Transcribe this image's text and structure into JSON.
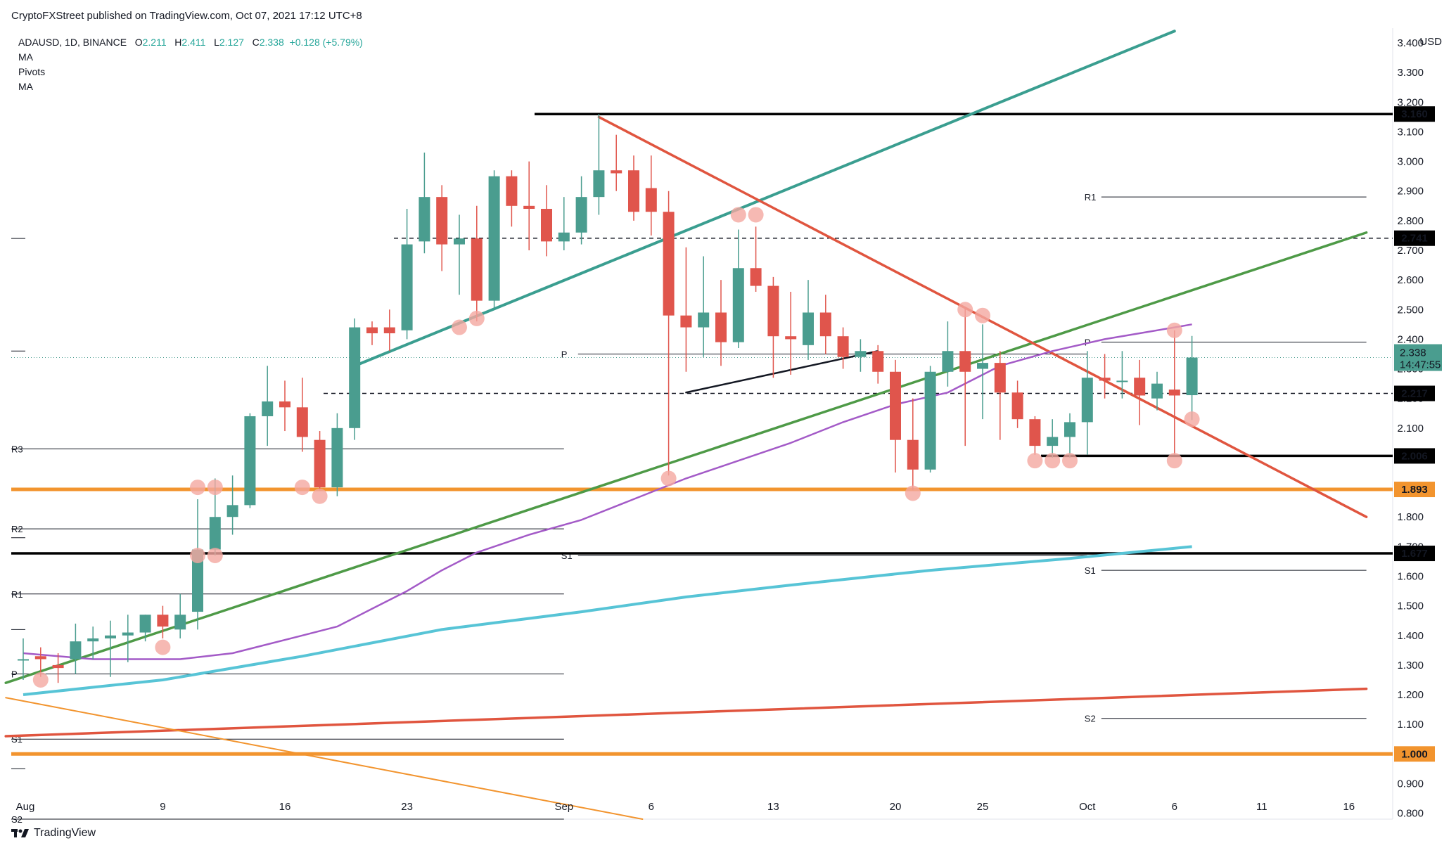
{
  "header": {
    "publisher_line": "CryptoFXStreet published on TradingView.com, Oct 07, 2021 17:12 UTC+8"
  },
  "legend": {
    "symbol": "ADAUSD, 1D, BINANCE",
    "o_label": "O",
    "o_value": "2.211",
    "h_label": "H",
    "h_value": "2.411",
    "l_label": "L",
    "l_value": "2.127",
    "c_label": "C",
    "c_value": "2.338",
    "change": "+0.128 (+5.79%)",
    "indicators": [
      "MA",
      "Pivots",
      "MA"
    ]
  },
  "footer": {
    "brand": "TradingView"
  },
  "colors": {
    "up": "#4a9d8f",
    "down": "#e0554c",
    "ma_purple": "#a35ac7",
    "ma_cyan": "#57c4d6",
    "teal_line": "#3a9e90",
    "green_line": "#4e9a47",
    "red_line": "#e0553f",
    "orange": "#f2942e",
    "highlight": "#f4a8a0"
  },
  "chart_data": {
    "type": "candlestick",
    "symbol": "ADAUSD",
    "currency": "USD",
    "ylim": [
      0.78,
      3.45
    ],
    "y_ticks": [
      "0.800",
      "0.900",
      "1.000",
      "1.100",
      "1.200",
      "1.300",
      "1.400",
      "1.500",
      "1.600",
      "1.700",
      "1.800",
      "1.900",
      "2.000",
      "2.100",
      "2.200",
      "2.300",
      "2.400",
      "2.500",
      "2.600",
      "2.700",
      "2.800",
      "2.900",
      "3.000",
      "3.100",
      "3.200",
      "3.300",
      "3.400"
    ],
    "x_ticks": [
      {
        "label": "Aug",
        "day": 0
      },
      {
        "label": "9",
        "day": 8
      },
      {
        "label": "16",
        "day": 15
      },
      {
        "label": "23",
        "day": 22
      },
      {
        "label": "Sep",
        "day": 31
      },
      {
        "label": "6",
        "day": 36
      },
      {
        "label": "13",
        "day": 43
      },
      {
        "label": "20",
        "day": 50
      },
      {
        "label": "25",
        "day": 55
      },
      {
        "label": "Oct",
        "day": 61
      },
      {
        "label": "6",
        "day": 66
      },
      {
        "label": "11",
        "day": 71
      },
      {
        "label": "16",
        "day": 76
      }
    ],
    "candles": [
      {
        "d": 0,
        "o": 1.32,
        "h": 1.39,
        "l": 1.25,
        "c": 1.32
      },
      {
        "d": 1,
        "o": 1.33,
        "h": 1.36,
        "l": 1.26,
        "c": 1.32
      },
      {
        "d": 2,
        "o": 1.3,
        "h": 1.34,
        "l": 1.24,
        "c": 1.29
      },
      {
        "d": 3,
        "o": 1.32,
        "h": 1.44,
        "l": 1.27,
        "c": 1.38
      },
      {
        "d": 4,
        "o": 1.38,
        "h": 1.43,
        "l": 1.32,
        "c": 1.39
      },
      {
        "d": 5,
        "o": 1.39,
        "h": 1.45,
        "l": 1.26,
        "c": 1.4
      },
      {
        "d": 6,
        "o": 1.4,
        "h": 1.47,
        "l": 1.31,
        "c": 1.41
      },
      {
        "d": 7,
        "o": 1.41,
        "h": 1.47,
        "l": 1.38,
        "c": 1.47
      },
      {
        "d": 8,
        "o": 1.47,
        "h": 1.5,
        "l": 1.39,
        "c": 1.43
      },
      {
        "d": 9,
        "o": 1.42,
        "h": 1.54,
        "l": 1.39,
        "c": 1.47
      },
      {
        "d": 10,
        "o": 1.48,
        "h": 1.86,
        "l": 1.42,
        "c": 1.69
      },
      {
        "d": 11,
        "o": 1.69,
        "h": 1.93,
        "l": 1.67,
        "c": 1.8
      },
      {
        "d": 12,
        "o": 1.8,
        "h": 1.94,
        "l": 1.74,
        "c": 1.84
      },
      {
        "d": 13,
        "o": 1.84,
        "h": 2.15,
        "l": 1.83,
        "c": 2.14
      },
      {
        "d": 14,
        "o": 2.14,
        "h": 2.31,
        "l": 2.04,
        "c": 2.19
      },
      {
        "d": 15,
        "o": 2.19,
        "h": 2.26,
        "l": 2.09,
        "c": 2.17
      },
      {
        "d": 16,
        "o": 2.17,
        "h": 2.27,
        "l": 2.02,
        "c": 2.07
      },
      {
        "d": 17,
        "o": 2.06,
        "h": 2.09,
        "l": 1.89,
        "c": 1.9
      },
      {
        "d": 18,
        "o": 1.9,
        "h": 2.15,
        "l": 1.87,
        "c": 2.1
      },
      {
        "d": 19,
        "o": 2.1,
        "h": 2.47,
        "l": 2.06,
        "c": 2.44
      },
      {
        "d": 20,
        "o": 2.44,
        "h": 2.46,
        "l": 2.38,
        "c": 2.42
      },
      {
        "d": 21,
        "o": 2.44,
        "h": 2.5,
        "l": 2.36,
        "c": 2.42
      },
      {
        "d": 22,
        "o": 2.43,
        "h": 2.84,
        "l": 2.4,
        "c": 2.72
      },
      {
        "d": 23,
        "o": 2.73,
        "h": 3.03,
        "l": 2.69,
        "c": 2.88
      },
      {
        "d": 24,
        "o": 2.88,
        "h": 2.92,
        "l": 2.63,
        "c": 2.72
      },
      {
        "d": 25,
        "o": 2.72,
        "h": 2.82,
        "l": 2.55,
        "c": 2.74
      },
      {
        "d": 26,
        "o": 2.74,
        "h": 2.85,
        "l": 2.46,
        "c": 2.53
      },
      {
        "d": 27,
        "o": 2.53,
        "h": 2.97,
        "l": 2.5,
        "c": 2.95
      },
      {
        "d": 28,
        "o": 2.95,
        "h": 2.97,
        "l": 2.78,
        "c": 2.85
      },
      {
        "d": 29,
        "o": 2.85,
        "h": 3.0,
        "l": 2.7,
        "c": 2.84
      },
      {
        "d": 30,
        "o": 2.84,
        "h": 2.92,
        "l": 2.68,
        "c": 2.73
      },
      {
        "d": 31,
        "o": 2.73,
        "h": 2.88,
        "l": 2.7,
        "c": 2.76
      },
      {
        "d": 32,
        "o": 2.76,
        "h": 2.95,
        "l": 2.72,
        "c": 2.88
      },
      {
        "d": 33,
        "o": 2.88,
        "h": 3.16,
        "l": 2.82,
        "c": 2.97
      },
      {
        "d": 34,
        "o": 2.97,
        "h": 3.09,
        "l": 2.9,
        "c": 2.96
      },
      {
        "d": 35,
        "o": 2.97,
        "h": 3.02,
        "l": 2.8,
        "c": 2.83
      },
      {
        "d": 36,
        "o": 2.91,
        "h": 3.02,
        "l": 2.75,
        "c": 2.83
      },
      {
        "d": 37,
        "o": 2.83,
        "h": 2.9,
        "l": 1.94,
        "c": 2.48
      },
      {
        "d": 38,
        "o": 2.48,
        "h": 2.71,
        "l": 2.29,
        "c": 2.44
      },
      {
        "d": 39,
        "o": 2.44,
        "h": 2.68,
        "l": 2.34,
        "c": 2.49
      },
      {
        "d": 40,
        "o": 2.49,
        "h": 2.6,
        "l": 2.31,
        "c": 2.39
      },
      {
        "d": 41,
        "o": 2.39,
        "h": 2.77,
        "l": 2.37,
        "c": 2.64
      },
      {
        "d": 42,
        "o": 2.64,
        "h": 2.78,
        "l": 2.56,
        "c": 2.58
      },
      {
        "d": 43,
        "o": 2.58,
        "h": 2.61,
        "l": 2.27,
        "c": 2.41
      },
      {
        "d": 44,
        "o": 2.41,
        "h": 2.56,
        "l": 2.28,
        "c": 2.4
      },
      {
        "d": 45,
        "o": 2.38,
        "h": 2.6,
        "l": 2.33,
        "c": 2.49
      },
      {
        "d": 46,
        "o": 2.49,
        "h": 2.55,
        "l": 2.35,
        "c": 2.41
      },
      {
        "d": 47,
        "o": 2.41,
        "h": 2.44,
        "l": 2.3,
        "c": 2.34
      },
      {
        "d": 48,
        "o": 2.34,
        "h": 2.4,
        "l": 2.29,
        "c": 2.36
      },
      {
        "d": 49,
        "o": 2.36,
        "h": 2.38,
        "l": 2.25,
        "c": 2.29
      },
      {
        "d": 50,
        "o": 2.29,
        "h": 2.33,
        "l": 1.95,
        "c": 2.06
      },
      {
        "d": 51,
        "o": 2.06,
        "h": 2.2,
        "l": 1.89,
        "c": 1.96
      },
      {
        "d": 52,
        "o": 1.96,
        "h": 2.31,
        "l": 1.95,
        "c": 2.29
      },
      {
        "d": 53,
        "o": 2.29,
        "h": 2.46,
        "l": 2.24,
        "c": 2.36
      },
      {
        "d": 54,
        "o": 2.36,
        "h": 2.51,
        "l": 2.04,
        "c": 2.29
      },
      {
        "d": 55,
        "o": 2.3,
        "h": 2.45,
        "l": 2.13,
        "c": 2.32
      },
      {
        "d": 56,
        "o": 2.32,
        "h": 2.36,
        "l": 2.06,
        "c": 2.22
      },
      {
        "d": 57,
        "o": 2.22,
        "h": 2.26,
        "l": 2.1,
        "c": 2.13
      },
      {
        "d": 58,
        "o": 2.13,
        "h": 2.14,
        "l": 2.01,
        "c": 2.04
      },
      {
        "d": 59,
        "o": 2.04,
        "h": 2.13,
        "l": 2.0,
        "c": 2.07
      },
      {
        "d": 60,
        "o": 2.07,
        "h": 2.15,
        "l": 2.0,
        "c": 2.12
      },
      {
        "d": 61,
        "o": 2.12,
        "h": 2.36,
        "l": 2.01,
        "c": 2.27
      },
      {
        "d": 62,
        "o": 2.27,
        "h": 2.35,
        "l": 2.2,
        "c": 2.26
      },
      {
        "d": 63,
        "o": 2.26,
        "h": 2.36,
        "l": 2.2,
        "c": 2.26
      },
      {
        "d": 64,
        "o": 2.27,
        "h": 2.33,
        "l": 2.11,
        "c": 2.21
      },
      {
        "d": 65,
        "o": 2.2,
        "h": 2.29,
        "l": 2.16,
        "c": 2.25
      },
      {
        "d": 66,
        "o": 2.23,
        "h": 2.43,
        "l": 2.01,
        "c": 2.21
      },
      {
        "d": 67,
        "o": 2.211,
        "h": 2.411,
        "l": 2.127,
        "c": 2.338
      }
    ],
    "ma_fast": [
      [
        0,
        1.34
      ],
      [
        4,
        1.32
      ],
      [
        9,
        1.32
      ],
      [
        12,
        1.34
      ],
      [
        16,
        1.4
      ],
      [
        18,
        1.43
      ],
      [
        20,
        1.49
      ],
      [
        22,
        1.55
      ],
      [
        24,
        1.62
      ],
      [
        26,
        1.68
      ],
      [
        29,
        1.74
      ],
      [
        32,
        1.79
      ],
      [
        35,
        1.86
      ],
      [
        38,
        1.93
      ],
      [
        41,
        1.99
      ],
      [
        44,
        2.05
      ],
      [
        47,
        2.12
      ],
      [
        50,
        2.18
      ],
      [
        53,
        2.22
      ],
      [
        56,
        2.31
      ],
      [
        59,
        2.36
      ],
      [
        62,
        2.4
      ],
      [
        64,
        2.42
      ],
      [
        66,
        2.44
      ],
      [
        67,
        2.45
      ]
    ],
    "ma_slow": [
      [
        0,
        1.2
      ],
      [
        8,
        1.25
      ],
      [
        16,
        1.33
      ],
      [
        24,
        1.42
      ],
      [
        32,
        1.48
      ],
      [
        38,
        1.53
      ],
      [
        44,
        1.57
      ],
      [
        52,
        1.62
      ],
      [
        60,
        1.66
      ],
      [
        67,
        1.7
      ]
    ],
    "trendlines": [
      {
        "name": "teal",
        "from": [
          19,
          2.31
        ],
        "to": [
          66,
          3.44
        ]
      },
      {
        "name": "green",
        "from": [
          -1,
          1.24
        ],
        "to": [
          77,
          2.76
        ]
      },
      {
        "name": "red",
        "from": [
          33,
          3.15
        ],
        "to": [
          77,
          1.8
        ]
      },
      {
        "name": "red-long",
        "from": [
          -1,
          1.06
        ],
        "to": [
          77,
          1.22
        ]
      },
      {
        "name": "orange-thin",
        "from": [
          -1,
          1.19
        ],
        "to": [
          35.5,
          0.78
        ]
      },
      {
        "name": "black-short",
        "from": [
          38,
          2.22
        ],
        "to": [
          49,
          2.36
        ]
      }
    ],
    "horizontal_levels": [
      {
        "value": 3.16,
        "label": "3.160",
        "style": "solid-black"
      },
      {
        "value": 2.741,
        "label": "2.741",
        "style": "dashed"
      },
      {
        "value": 2.217,
        "label": "2.217",
        "style": "dashed"
      },
      {
        "value": 2.006,
        "label": "2.006",
        "style": "solid-black"
      },
      {
        "value": 1.893,
        "label": "1.893",
        "style": "orange"
      },
      {
        "value": 1.677,
        "label": "1.677",
        "style": "solid-black"
      },
      {
        "value": 1.0,
        "label": "1.000",
        "style": "orange"
      }
    ],
    "last_price": {
      "value": 2.338,
      "label": "2.338",
      "countdown": "14:47:55"
    },
    "pivots": [
      {
        "label": "R3",
        "value": 2.03,
        "from": -1,
        "to": 31
      },
      {
        "label": "R2",
        "value": 1.76,
        "from": -1,
        "to": 31
      },
      {
        "label": "R1",
        "value": 1.54,
        "from": -1,
        "to": 31
      },
      {
        "label": "P",
        "value": 1.27,
        "from": -1,
        "to": 31
      },
      {
        "label": "S1",
        "value": 1.05,
        "from": -1,
        "to": 31
      },
      {
        "label": "S2",
        "value": 0.78,
        "from": -1,
        "to": 31
      },
      {
        "label": "P",
        "value": 2.35,
        "from": 31,
        "to": 61
      },
      {
        "label": "S1",
        "value": 1.67,
        "from": 31,
        "to": 61
      },
      {
        "label": "R1",
        "value": 2.88,
        "from": 61,
        "to": 77
      },
      {
        "label": "P",
        "value": 2.39,
        "from": 61,
        "to": 77
      },
      {
        "label": "S1",
        "value": 1.62,
        "from": 61,
        "to": 77
      },
      {
        "label": "S2",
        "value": 1.12,
        "from": 61,
        "to": 77
      }
    ],
    "highlight_points": [
      [
        1,
        1.25
      ],
      [
        8,
        1.36
      ],
      [
        10,
        1.9
      ],
      [
        10,
        1.67
      ],
      [
        11,
        1.9
      ],
      [
        11,
        1.67
      ],
      [
        16,
        1.9
      ],
      [
        17,
        1.87
      ],
      [
        25,
        2.44
      ],
      [
        26,
        2.47
      ],
      [
        37,
        1.93
      ],
      [
        41,
        2.82
      ],
      [
        42,
        2.82
      ],
      [
        51,
        1.88
      ],
      [
        54,
        2.5
      ],
      [
        55,
        2.48
      ],
      [
        58,
        1.99
      ],
      [
        59,
        1.99
      ],
      [
        60,
        1.99
      ],
      [
        66,
        1.99
      ],
      [
        66,
        2.43
      ],
      [
        67,
        2.13
      ]
    ],
    "left_ticks_y": [
      2.74,
      2.36,
      1.89,
      1.73,
      1.42,
      0.95
    ]
  }
}
